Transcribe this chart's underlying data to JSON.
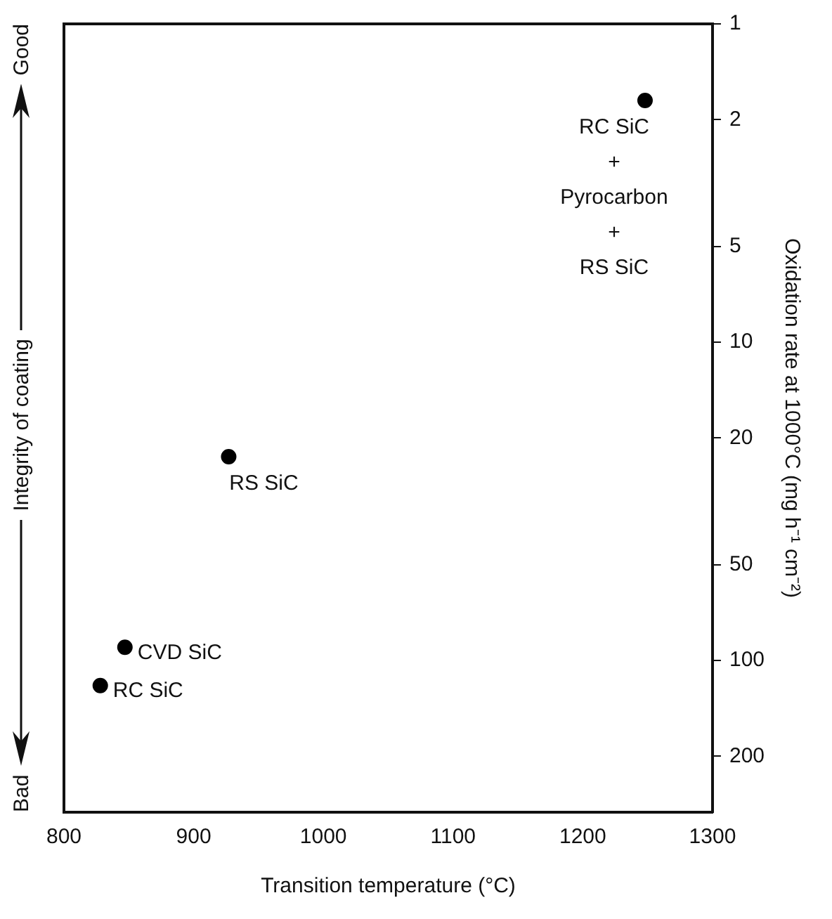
{
  "chart_data": {
    "type": "scatter",
    "xlabel": "Transition temperature (°C)",
    "ylabel": "Integrity of coating",
    "y2label": "Oxidation rate at 1000°C (mg h⁻¹ cm⁻²)",
    "x": [
      1248,
      927,
      847,
      828
    ],
    "series": [
      {
        "color": "#000000",
        "axis": "y2",
        "values": [
          1.74,
          22.9,
          91,
          120
        ]
      }
    ],
    "xlim": [
      800,
      1300
    ],
    "xticks": [
      800,
      900,
      1000,
      1100,
      1200,
      1300
    ],
    "y2lim": [
      300,
      1
    ],
    "y2ticks": [
      1,
      2,
      5,
      10,
      20,
      50,
      100,
      200
    ],
    "log": "y2",
    "marker": "circle",
    "grid": false,
    "legend": false,
    "annotations": [
      "Good",
      "Bad",
      "RC SiC\n+\nPyrocarbon\n+\nRS SiC",
      "RS SiC",
      "CVD SiC",
      "RC SiC"
    ]
  }
}
